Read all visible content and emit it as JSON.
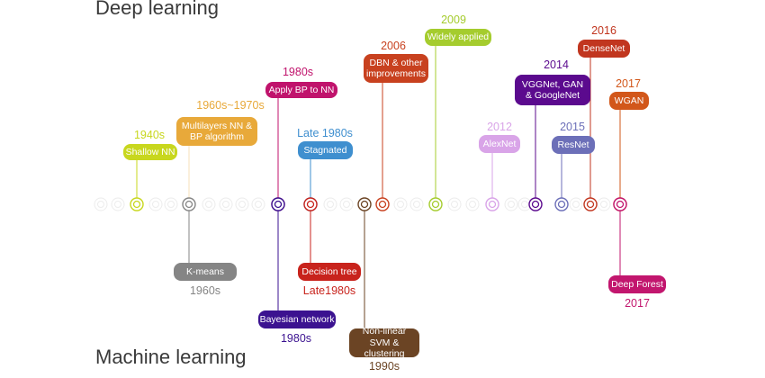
{
  "titles": {
    "top": "Deep learning",
    "bottom": "Machine learning"
  },
  "top_events": [
    {
      "year": "1940s",
      "label": "Shallow NN",
      "color": "#c8d71e"
    },
    {
      "year": "1960s~1970s",
      "label": "Multilayers NN & BP algorithm",
      "color": "#e8a93a"
    },
    {
      "year": "1980s",
      "label": "Apply BP to NN",
      "color": "#c0136c"
    },
    {
      "year": "Late 1980s",
      "label": "Stagnated",
      "color": "#3f8fcf"
    },
    {
      "year": "2006",
      "label": "DBN & other improvements",
      "color": "#c8411f"
    },
    {
      "year": "2009",
      "label": "Widely applied",
      "color": "#a5cc2e"
    },
    {
      "year": "2012",
      "label": "AlexNet",
      "color": "#d9a4e8"
    },
    {
      "year": "2014",
      "label": "VGGNet, GAN & GoogleNet",
      "color": "#5b0a8e"
    },
    {
      "year": "2015",
      "label": "ResNet",
      "color": "#6c6fb8"
    },
    {
      "year": "2016",
      "label": "DenseNet",
      "color": "#c1361f"
    },
    {
      "year": "2017",
      "label": "WGAN",
      "color": "#d2571a"
    }
  ],
  "bottom_events": [
    {
      "year": "1960s",
      "label": "K-means",
      "color": "#858585"
    },
    {
      "year": "1980s",
      "label": "Bayesian network",
      "color": "#3b1290"
    },
    {
      "year": "Late1980s",
      "label": "Decision tree",
      "color": "#c8231c"
    },
    {
      "year": "1990s",
      "label": "Non-linear SVM & clustering",
      "color": "#6b4424"
    },
    {
      "year": "2017",
      "label": "Deep Forest",
      "color": "#c2166e"
    }
  ]
}
